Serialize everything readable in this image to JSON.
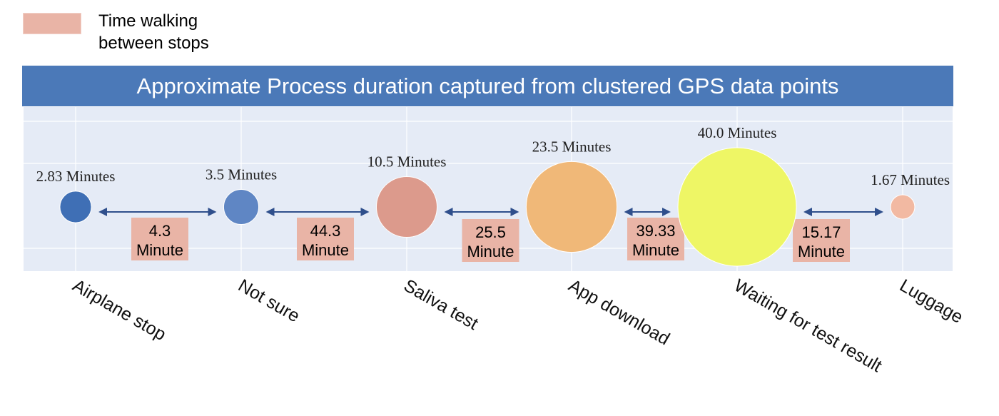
{
  "legend": {
    "label_line1": "Time walking",
    "label_line2": "between stops",
    "swatch_color": "#e9b4a6"
  },
  "chart_data": {
    "type": "scatter",
    "title": "Approximate Process duration captured from clustered GPS data points",
    "categories": [
      "Airplane stop",
      "Not sure",
      "Saliva test",
      "App download",
      "Waiting for test result",
      "Luggage"
    ],
    "durations": [
      2.83,
      3.5,
      10.5,
      23.5,
      40.0,
      1.67
    ],
    "duration_labels": [
      "2.83 Minutes",
      "3.5 Minutes",
      "10.5 Minutes",
      "23.5 Minutes",
      "40.0 Minutes",
      "1.67 Minutes"
    ],
    "bubble_colors": [
      "#3f6fb5",
      "#5f86c4",
      "#dc9a8c",
      "#f0b878",
      "#eef665",
      "#f2b9a2"
    ],
    "walking": {
      "name": "Time walking between stops",
      "values": [
        4.3,
        44.3,
        25.5,
        39.33,
        15.17
      ],
      "line1": [
        "4.3",
        "44.3",
        "25.5",
        "39.33",
        "15.17"
      ],
      "line2": [
        "Minute",
        "Minute",
        "Minute",
        "Minute",
        "Minute"
      ]
    },
    "colors": {
      "banner": "#4b79b8",
      "plot_background": "#e5ebf6",
      "arrow": "#2f4f8c",
      "label_box": "#e9b4a6"
    }
  }
}
